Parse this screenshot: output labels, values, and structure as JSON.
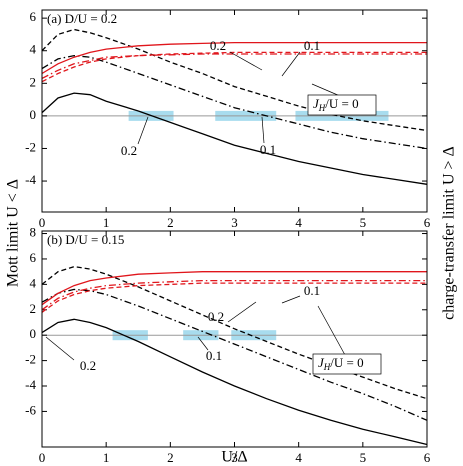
{
  "ylabel": "Mott limit U < Δ",
  "y2label": "charge-transfer limit U > Δ",
  "chart_data": [
    {
      "type": "line",
      "title": "(a) D/U = 0.2",
      "xlim": [
        0,
        6
      ],
      "xticks": [
        0,
        1,
        2,
        3,
        4,
        5,
        6
      ],
      "ylim": [
        -5.9,
        6.5
      ],
      "yticks": [
        -4,
        -2,
        0,
        2,
        4,
        6
      ],
      "x": [
        0,
        0.25,
        0.5,
        0.75,
        1,
        1.5,
        2,
        2.5,
        3,
        3.5,
        4,
        4.5,
        5,
        5.5,
        6
      ],
      "series": [
        {
          "color": "#000000",
          "style": "solid",
          "values": [
            0.2,
            1.1,
            1.4,
            1.3,
            0.9,
            0.3,
            -0.4,
            -1.1,
            -1.8,
            -2.3,
            -2.8,
            -3.2,
            -3.6,
            -3.9,
            -4.2
          ]
        },
        {
          "color": "#000000",
          "style": "dashed",
          "values": [
            4.0,
            5.0,
            5.3,
            5.1,
            4.8,
            4.1,
            3.3,
            2.6,
            1.8,
            1.2,
            0.6,
            0.1,
            -0.3,
            -0.6,
            -0.9
          ]
        },
        {
          "color": "#000000",
          "style": "dashdot",
          "values": [
            2.9,
            3.5,
            3.7,
            3.6,
            3.3,
            2.6,
            1.9,
            1.2,
            0.5,
            0,
            -0.5,
            -1.0,
            -1.4,
            -1.7,
            -2.0
          ]
        },
        {
          "color": "#e0161c",
          "style": "solid",
          "values": [
            2.6,
            3.2,
            3.6,
            3.9,
            4.1,
            4.3,
            4.4,
            4.45,
            4.5,
            4.5,
            4.5,
            4.5,
            4.5,
            4.5,
            4.5
          ]
        },
        {
          "color": "#e0161c",
          "style": "dashed",
          "values": [
            2.1,
            2.6,
            3.0,
            3.3,
            3.5,
            3.7,
            3.8,
            3.85,
            3.9,
            3.9,
            3.9,
            3.9,
            3.9,
            3.9,
            3.9
          ]
        },
        {
          "color": "#e0161c",
          "style": "dashdot",
          "values": [
            2.3,
            2.8,
            3.2,
            3.4,
            3.6,
            3.7,
            3.75,
            3.8,
            3.8,
            3.8,
            3.8,
            3.8,
            3.8,
            3.8,
            3.8
          ]
        }
      ],
      "highlight_color": "#a8dcee",
      "highlight_ranges": [
        [
          1.35,
          2.05
        ],
        [
          2.7,
          3.65
        ],
        [
          3.95,
          5.4
        ]
      ],
      "annotations": [
        "0.2",
        "0.1",
        "0.2",
        "0.1"
      ],
      "jh_label": {
        "main": "J",
        "sub": "H",
        "rest": "/U = 0"
      }
    },
    {
      "type": "line",
      "title": "(b) D/U = 0.15",
      "xlabel": "U/Δ",
      "xlim": [
        0,
        6
      ],
      "xticks": [
        0,
        1,
        2,
        3,
        4,
        5,
        6
      ],
      "ylim": [
        -8.8,
        8.2
      ],
      "yticks": [
        -6,
        -4,
        -2,
        0,
        2,
        4,
        6,
        8
      ],
      "x": [
        0,
        0.25,
        0.5,
        0.75,
        1,
        1.5,
        2,
        2.5,
        3,
        3.5,
        4,
        4.5,
        5,
        5.5,
        6
      ],
      "series": [
        {
          "color": "#000000",
          "style": "solid",
          "values": [
            0.2,
            1.0,
            1.25,
            1.0,
            0.6,
            -0.5,
            -1.7,
            -2.9,
            -4.0,
            -5.0,
            -5.9,
            -6.7,
            -7.4,
            -8.0,
            -8.6
          ]
        },
        {
          "color": "#000000",
          "style": "dashed",
          "values": [
            4.0,
            5.0,
            5.4,
            5.2,
            4.8,
            3.8,
            2.7,
            1.6,
            0.5,
            -0.5,
            -1.5,
            -2.4,
            -3.3,
            -4.2,
            -5.0
          ]
        },
        {
          "color": "#000000",
          "style": "dashdot",
          "values": [
            2.6,
            3.3,
            3.6,
            3.5,
            3.2,
            2.3,
            1.3,
            0.3,
            -0.7,
            -1.7,
            -2.7,
            -3.7,
            -4.6,
            -5.6,
            -6.7
          ]
        },
        {
          "color": "#e0161c",
          "style": "solid",
          "values": [
            2.4,
            3.3,
            3.9,
            4.3,
            4.5,
            4.8,
            4.9,
            5.0,
            5.0,
            5.0,
            5.0,
            5.0,
            5.0,
            5.0,
            5.0
          ]
        },
        {
          "color": "#e0161c",
          "style": "dashed",
          "values": [
            1.8,
            2.7,
            3.2,
            3.5,
            3.7,
            3.9,
            4.0,
            4.1,
            4.1,
            4.1,
            4.1,
            4.1,
            4.1,
            4.1,
            4.1
          ]
        },
        {
          "color": "#e0161c",
          "style": "dashdot",
          "values": [
            2.0,
            2.9,
            3.4,
            3.7,
            3.9,
            4.1,
            4.2,
            4.3,
            4.3,
            4.3,
            4.3,
            4.3,
            4.3,
            4.3,
            4.3
          ]
        }
      ],
      "highlight_color": "#a8dcee",
      "highlight_ranges": [
        [
          1.1,
          1.65
        ],
        [
          2.2,
          2.75
        ],
        [
          2.95,
          3.65
        ]
      ],
      "annotations": [
        "0.2",
        "0.1",
        "0.2",
        "0.1"
      ],
      "jh_label": {
        "main": "J",
        "sub": "H",
        "rest": "/U = 0"
      }
    }
  ]
}
